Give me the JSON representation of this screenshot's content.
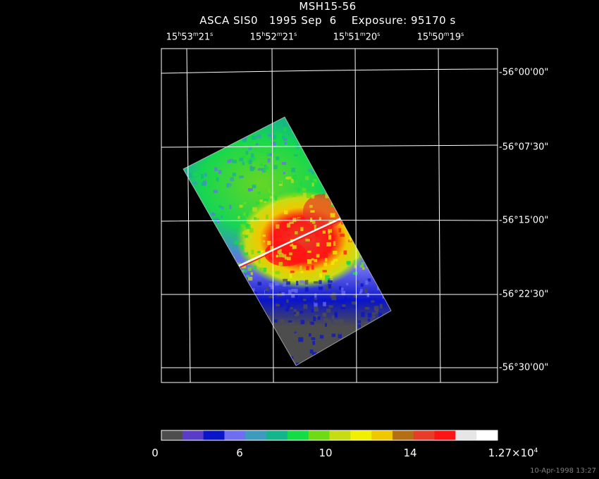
{
  "title": "MSH15-56",
  "subtitle": "ASCA SIS0   1995 Sep  6    Exposure: 95170 s",
  "ra_labels": [
    {
      "h": "15",
      "m": "53",
      "s": "21"
    },
    {
      "h": "15",
      "m": "52",
      "s": "21"
    },
    {
      "h": "15",
      "m": "51",
      "s": "20"
    },
    {
      "h": "15",
      "m": "50",
      "s": "19"
    }
  ],
  "dec_labels": [
    "-56°00'00\"",
    "-56°07'30\"",
    "-56°15'00\"",
    "-56°22'30\"",
    "-56°30'00\""
  ],
  "colorbar": {
    "ticks": [
      "0",
      "6",
      "10",
      "14"
    ],
    "max_mantissa": "1.27×10",
    "max_exp": "4",
    "colors": [
      "#4d4d4d",
      "#5a3cc8",
      "#0a14c8",
      "#6e6ef0",
      "#3c9bbe",
      "#14b48c",
      "#14dc46",
      "#6edc14",
      "#c8dc14",
      "#f0f000",
      "#f0c800",
      "#b46e14",
      "#e63c28",
      "#ff1414",
      "#e6e6e6",
      "#ffffff"
    ]
  },
  "timestamp": "10-Apr-1998 13:27"
}
